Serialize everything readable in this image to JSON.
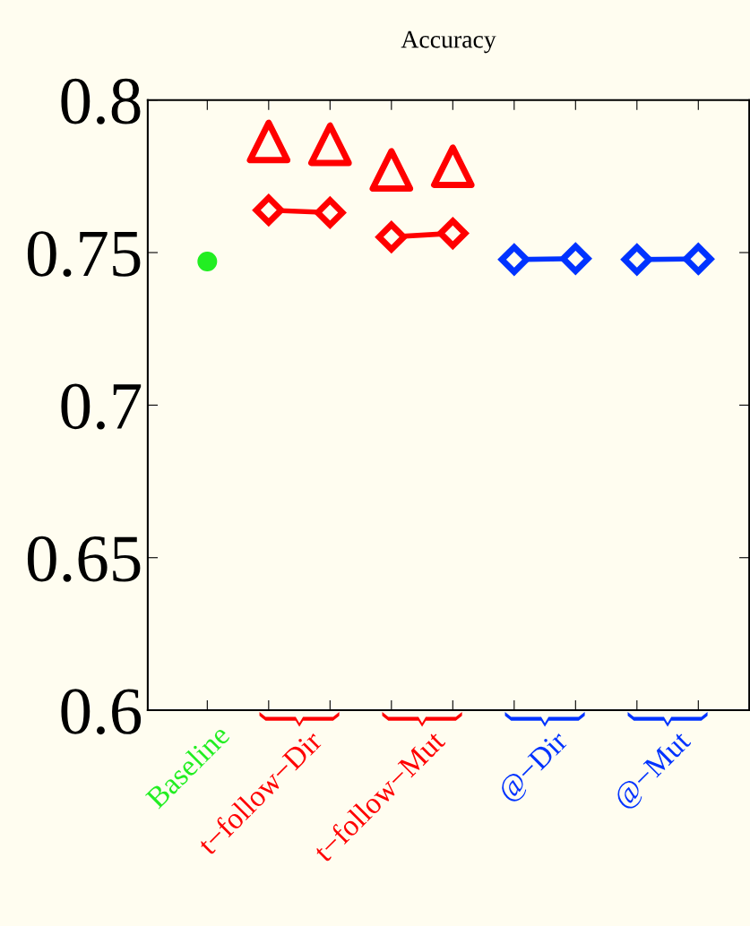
{
  "chart_data": {
    "type": "scatter",
    "title": "Accuracy",
    "categories": [
      "Baseline",
      "t−follow−Dir",
      null,
      "t−follow−Mut",
      null,
      "@−Dir",
      null,
      "@−Mut",
      null
    ],
    "series": [
      {
        "marker": "circle",
        "color": "#22ee22",
        "values": [
          0.7471,
          null,
          null,
          null,
          null,
          null,
          null,
          null,
          null
        ]
      },
      {
        "marker": "triangle",
        "color": "#ff0000",
        "values": [
          null,
          0.7864,
          0.7855,
          0.7771,
          0.7783,
          null,
          null,
          null,
          null
        ]
      },
      {
        "type": "line",
        "marker": "diamond",
        "color": "#ff0000",
        "values": [
          null,
          0.7639,
          0.7631,
          null,
          null,
          null,
          null,
          null,
          null
        ]
      },
      {
        "type": "line",
        "marker": "diamond",
        "color": "#ff0000",
        "values": [
          null,
          null,
          null,
          0.7551,
          0.7563,
          null,
          null,
          null,
          null
        ]
      },
      {
        "type": "line",
        "marker": "diamond",
        "color": "#0033ff",
        "values": [
          null,
          null,
          null,
          null,
          null,
          0.7477,
          0.748,
          null,
          null
        ]
      },
      {
        "type": "line",
        "marker": "diamond",
        "color": "#0033ff",
        "values": [
          null,
          null,
          null,
          null,
          null,
          null,
          null,
          0.7477,
          0.7479
        ]
      }
    ],
    "ylim": [
      0.6,
      0.8
    ],
    "yticks": [
      0.6,
      0.65,
      0.7,
      0.75,
      0.8
    ],
    "grid": false,
    "legend": false
  }
}
